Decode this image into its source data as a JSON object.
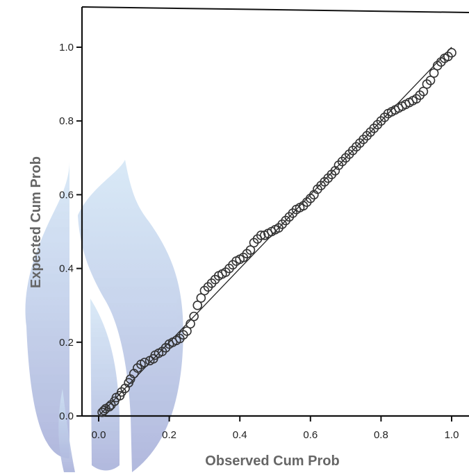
{
  "chart_data": {
    "type": "scatter",
    "title": "",
    "xlabel": "Observed Cum Prob",
    "ylabel": "Expected Cum Prob",
    "xlim": [
      0.0,
      1.05
    ],
    "ylim": [
      0.0,
      1.1
    ],
    "xticks": [
      "0.0",
      "0.2",
      "0.4",
      "0.6",
      "0.8",
      "1.0"
    ],
    "yticks": [
      "0.0",
      "0.2",
      "0.4",
      "0.6",
      "0.8",
      "1.0"
    ],
    "grid": false,
    "reference_line": [
      [
        0.0,
        0.0
      ],
      [
        1.0,
        1.0
      ]
    ],
    "series": [
      {
        "x": [
          0.01,
          0.015,
          0.02,
          0.03,
          0.035,
          0.045,
          0.05,
          0.06,
          0.065,
          0.075,
          0.085,
          0.09,
          0.1,
          0.11,
          0.12,
          0.13,
          0.145,
          0.155,
          0.16,
          0.17,
          0.18,
          0.19,
          0.2,
          0.21,
          0.22,
          0.23,
          0.24,
          0.25,
          0.26,
          0.27,
          0.28,
          0.29,
          0.3,
          0.31,
          0.32,
          0.33,
          0.34,
          0.35,
          0.36,
          0.37,
          0.38,
          0.39,
          0.4,
          0.41,
          0.42,
          0.43,
          0.44,
          0.45,
          0.46,
          0.47,
          0.48,
          0.49,
          0.5,
          0.51,
          0.52,
          0.53,
          0.54,
          0.55,
          0.56,
          0.57,
          0.58,
          0.59,
          0.6,
          0.61,
          0.62,
          0.63,
          0.64,
          0.65,
          0.66,
          0.67,
          0.68,
          0.69,
          0.7,
          0.71,
          0.72,
          0.73,
          0.74,
          0.75,
          0.76,
          0.77,
          0.78,
          0.79,
          0.8,
          0.81,
          0.82,
          0.83,
          0.84,
          0.85,
          0.86,
          0.87,
          0.88,
          0.89,
          0.9,
          0.91,
          0.92,
          0.93,
          0.94,
          0.95,
          0.96,
          0.97,
          0.98,
          0.99,
          1.0
        ],
        "y": [
          0.01,
          0.015,
          0.02,
          0.025,
          0.03,
          0.04,
          0.05,
          0.055,
          0.065,
          0.075,
          0.09,
          0.1,
          0.115,
          0.13,
          0.14,
          0.145,
          0.15,
          0.155,
          0.165,
          0.17,
          0.175,
          0.185,
          0.195,
          0.2,
          0.205,
          0.21,
          0.22,
          0.23,
          0.25,
          0.27,
          0.3,
          0.32,
          0.34,
          0.35,
          0.36,
          0.37,
          0.38,
          0.385,
          0.39,
          0.4,
          0.41,
          0.42,
          0.425,
          0.43,
          0.44,
          0.45,
          0.47,
          0.48,
          0.49,
          0.49,
          0.495,
          0.5,
          0.505,
          0.51,
          0.52,
          0.53,
          0.54,
          0.55,
          0.56,
          0.565,
          0.57,
          0.58,
          0.59,
          0.6,
          0.615,
          0.625,
          0.635,
          0.645,
          0.655,
          0.665,
          0.68,
          0.69,
          0.7,
          0.71,
          0.72,
          0.73,
          0.74,
          0.75,
          0.76,
          0.77,
          0.78,
          0.79,
          0.8,
          0.81,
          0.82,
          0.825,
          0.83,
          0.835,
          0.84,
          0.845,
          0.85,
          0.855,
          0.86,
          0.87,
          0.88,
          0.9,
          0.91,
          0.93,
          0.95,
          0.96,
          0.97,
          0.975,
          0.985
        ]
      }
    ]
  }
}
